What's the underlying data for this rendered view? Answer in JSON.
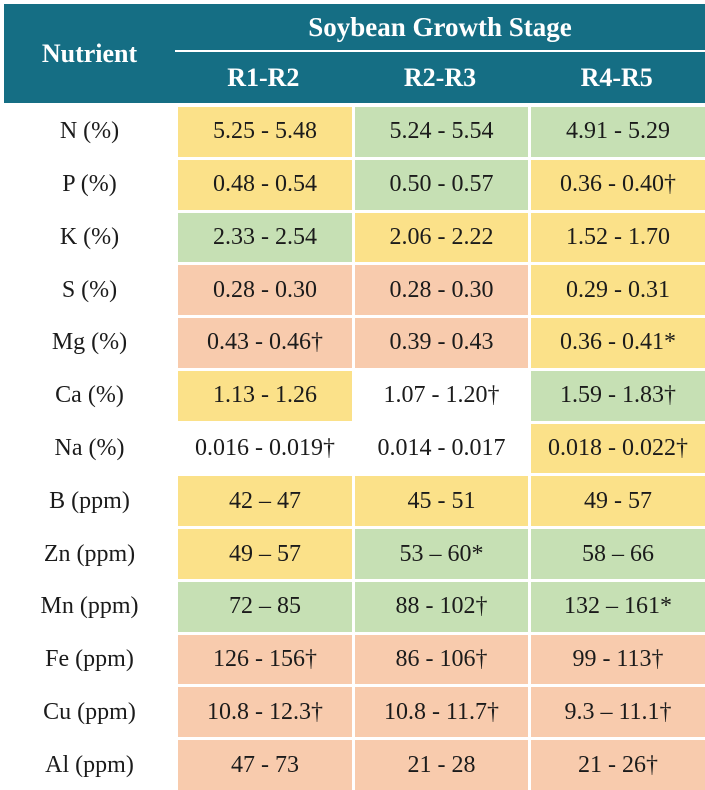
{
  "chart_data": {
    "type": "table",
    "title": "Soybean Growth Stage",
    "columns": [
      "Nutrient",
      "R1-R2",
      "R2-R3",
      "R4-R5"
    ],
    "header": {
      "nutrient_label": "Nutrient",
      "group_label": "Soybean Growth Stage",
      "stages": [
        "R1-R2",
        "R2-R3",
        "R4-R5"
      ]
    },
    "palette": {
      "header_bg": "#156E84",
      "header_text": "#FFFFFF",
      "yellow": "#FBE189",
      "green": "#C6E0B4",
      "orange": "#F8CBAD",
      "white": "#FFFFFF",
      "text": "#1B1B1B"
    },
    "rows": [
      {
        "nutrient": "N (%)",
        "values": [
          "5.25 - 5.48",
          "5.24 - 5.54",
          "4.91 - 5.29"
        ],
        "fills": [
          "yellow",
          "green",
          "green"
        ]
      },
      {
        "nutrient": "P (%)",
        "values": [
          "0.48 - 0.54",
          "0.50 - 0.57",
          "0.36 - 0.40†"
        ],
        "fills": [
          "yellow",
          "green",
          "yellow"
        ]
      },
      {
        "nutrient": "K (%)",
        "values": [
          "2.33 - 2.54",
          "2.06 - 2.22",
          "1.52 - 1.70"
        ],
        "fills": [
          "green",
          "yellow",
          "yellow"
        ]
      },
      {
        "nutrient": "S (%)",
        "values": [
          "0.28 - 0.30",
          "0.28 - 0.30",
          "0.29 - 0.31"
        ],
        "fills": [
          "orange",
          "orange",
          "yellow"
        ]
      },
      {
        "nutrient": "Mg (%)",
        "values": [
          "0.43 - 0.46†",
          "0.39 - 0.43",
          "0.36 - 0.41*"
        ],
        "fills": [
          "orange",
          "orange",
          "yellow"
        ]
      },
      {
        "nutrient": "Ca (%)",
        "values": [
          "1.13 - 1.26",
          "1.07 - 1.20†",
          "1.59 - 1.83†"
        ],
        "fills": [
          "yellow",
          "white",
          "green"
        ]
      },
      {
        "nutrient": "Na (%)",
        "values": [
          "0.016 - 0.019†",
          "0.014 - 0.017",
          "0.018 - 0.022†"
        ],
        "fills": [
          "white",
          "white",
          "yellow"
        ]
      },
      {
        "nutrient": "B (ppm)",
        "values": [
          "42 – 47",
          "45 - 51",
          "49 - 57"
        ],
        "fills": [
          "yellow",
          "yellow",
          "yellow"
        ]
      },
      {
        "nutrient": "Zn (ppm)",
        "values": [
          "49 – 57",
          "53 – 60*",
          "58 – 66"
        ],
        "fills": [
          "yellow",
          "green",
          "green"
        ]
      },
      {
        "nutrient": "Mn (ppm)",
        "values": [
          "72 – 85",
          "88 - 102†",
          "132 – 161*"
        ],
        "fills": [
          "green",
          "green",
          "green"
        ]
      },
      {
        "nutrient": "Fe (ppm)",
        "values": [
          "126 - 156†",
          "86 - 106†",
          "99 - 113†"
        ],
        "fills": [
          "orange",
          "orange",
          "orange"
        ]
      },
      {
        "nutrient": "Cu (ppm)",
        "values": [
          "10.8 - 12.3†",
          "10.8 - 11.7†",
          "9.3 – 11.1†"
        ],
        "fills": [
          "orange",
          "orange",
          "orange"
        ]
      },
      {
        "nutrient": "Al (ppm)",
        "values": [
          "47 - 73",
          "21 - 28",
          "21 - 26†"
        ],
        "fills": [
          "orange",
          "orange",
          "orange"
        ]
      }
    ]
  }
}
